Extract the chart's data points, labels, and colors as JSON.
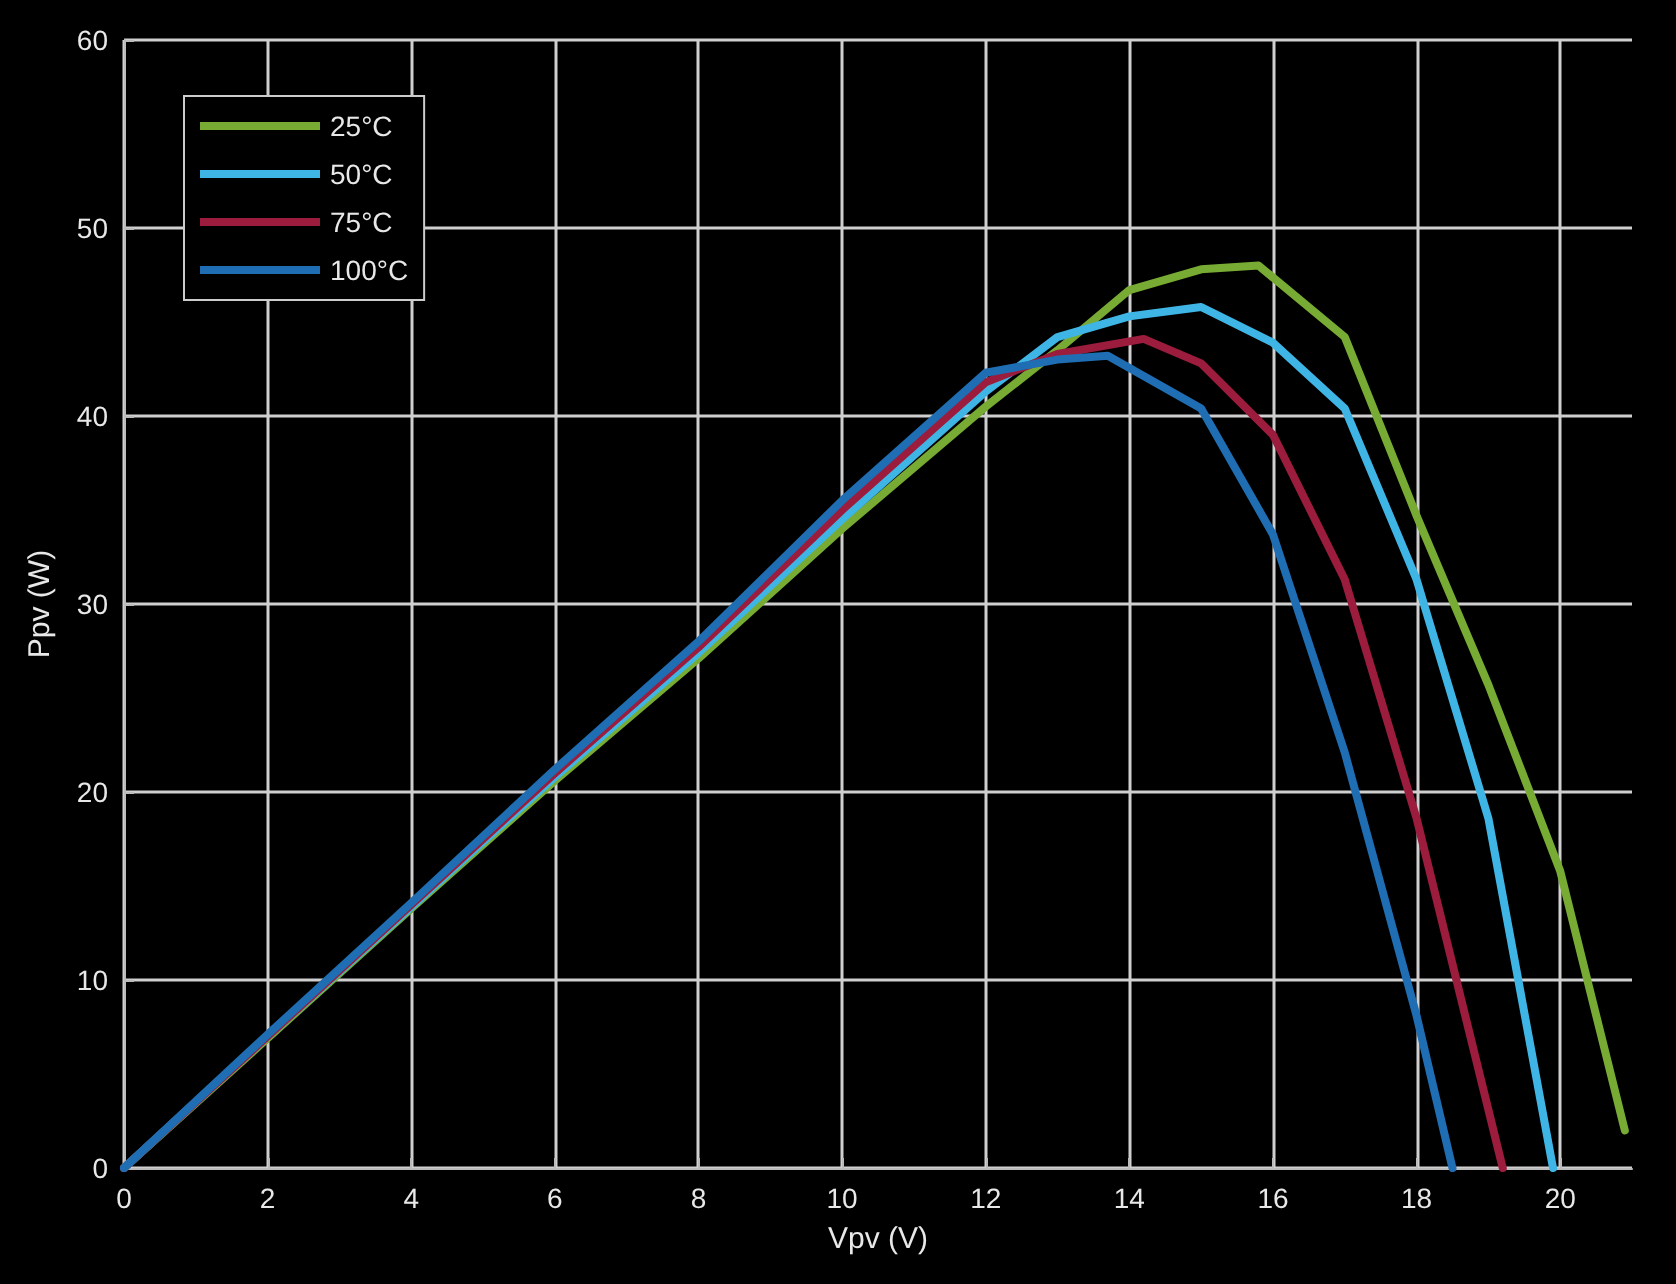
{
  "chart_data": {
    "type": "line",
    "xlabel": "Vpv (V)",
    "ylabel": "Ppv (W)",
    "xlim": [
      0,
      21
    ],
    "xticks": [
      0,
      2,
      4,
      6,
      8,
      10,
      12,
      14,
      16,
      18,
      20
    ],
    "ylim": [
      0,
      60
    ],
    "yticks": [
      0,
      10,
      20,
      30,
      40,
      50,
      60
    ],
    "grid": true,
    "legend": "top left",
    "marker": "none",
    "line_style": "solid",
    "series": [
      {
        "name": "25°C",
        "color": "#77ab33",
        "x": [
          0,
          2,
          4,
          6,
          8,
          10,
          12,
          13,
          14,
          15,
          15.8,
          17,
          18,
          19,
          20,
          20.9
        ],
        "values": [
          0,
          6.9,
          13.8,
          20.6,
          27.1,
          34,
          40.5,
          43.5,
          46.7,
          47.8,
          48,
          44.2,
          34.7,
          25.7,
          15.8,
          2
        ]
      },
      {
        "name": "50°C",
        "color": "#3fb5e6",
        "x": [
          0,
          2,
          4,
          6,
          8,
          10,
          12,
          13,
          14,
          15,
          16,
          17,
          18,
          19,
          19.9
        ],
        "values": [
          0,
          7,
          13.9,
          20.8,
          27.4,
          34.5,
          41.3,
          44.2,
          45.3,
          45.8,
          43.9,
          40.4,
          31.3,
          18.6,
          0
        ]
      },
      {
        "name": "75°C",
        "color": "#9b1c3c",
        "x": [
          0,
          2,
          4,
          6,
          8,
          10,
          12,
          13,
          14.2,
          15,
          16,
          17,
          18,
          19.2
        ],
        "values": [
          0,
          7,
          14,
          21,
          27.7,
          35,
          41.8,
          43.3,
          44.1,
          42.8,
          39,
          31.3,
          18.6,
          0
        ]
      },
      {
        "name": "100°C",
        "color": "#1f6db3",
        "x": [
          0,
          2,
          4,
          6,
          8,
          10,
          12,
          13,
          13.7,
          15,
          16,
          17,
          18,
          18.5
        ],
        "values": [
          0,
          7.1,
          14.1,
          21.2,
          28,
          35.5,
          42.3,
          43,
          43.2,
          40.4,
          33.7,
          22.1,
          8.1,
          0
        ]
      }
    ]
  }
}
